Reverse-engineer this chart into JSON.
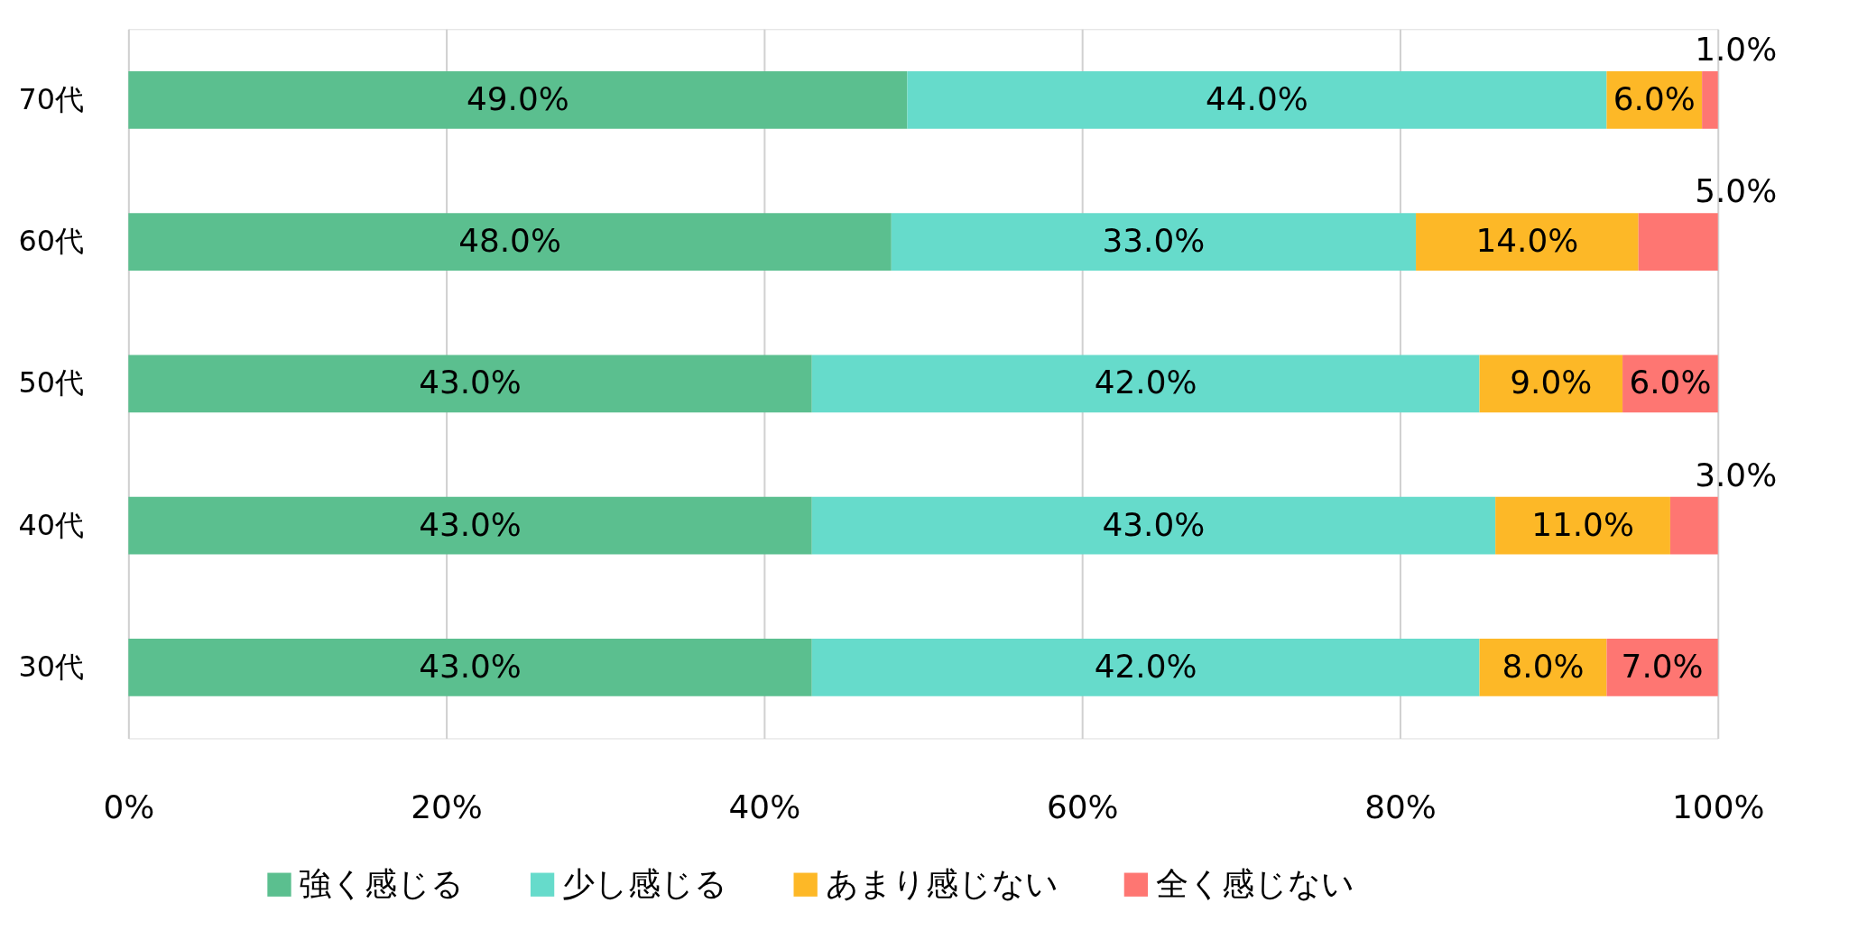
{
  "chart_data": {
    "type": "bar",
    "orientation": "horizontal",
    "stacked": true,
    "categories": [
      "70代",
      "60代",
      "50代",
      "40代",
      "30代"
    ],
    "series": [
      {
        "name": "強く感じる",
        "color": "#5bbf8f",
        "values": [
          49,
          48,
          43,
          43,
          43
        ],
        "value_labels": [
          "49.0%",
          "48.0%",
          "43.0%",
          "43.0%",
          "43.0%"
        ]
      },
      {
        "name": "少し感じる",
        "color": "#66dbcb",
        "values": [
          44,
          33,
          42,
          43,
          42
        ],
        "value_labels": [
          "44.0%",
          "33.0%",
          "42.0%",
          "43.0%",
          "42.0%"
        ]
      },
      {
        "name": "あまり感じない",
        "color": "#fdb827",
        "values": [
          6,
          14,
          9,
          11,
          8
        ],
        "value_labels": [
          "6.0%",
          "14.0%",
          "9.0%",
          "11.0%",
          "8.0%"
        ]
      },
      {
        "name": "全く感じない",
        "color": "#fe7672",
        "values": [
          1,
          5,
          6,
          3,
          7
        ],
        "value_labels": [
          "1.0%",
          "5.0%",
          "6.0%",
          "3.0%",
          "7.0%"
        ]
      }
    ],
    "xlim": [
      0,
      100
    ],
    "xticks": [
      {
        "value": 0,
        "label": "0%"
      },
      {
        "value": 20,
        "label": "20%"
      },
      {
        "value": 40,
        "label": "40%"
      },
      {
        "value": 60,
        "label": "60%"
      },
      {
        "value": 80,
        "label": "80%"
      },
      {
        "value": 100,
        "label": "100%"
      }
    ],
    "grid": "x",
    "legend": "bottom"
  }
}
